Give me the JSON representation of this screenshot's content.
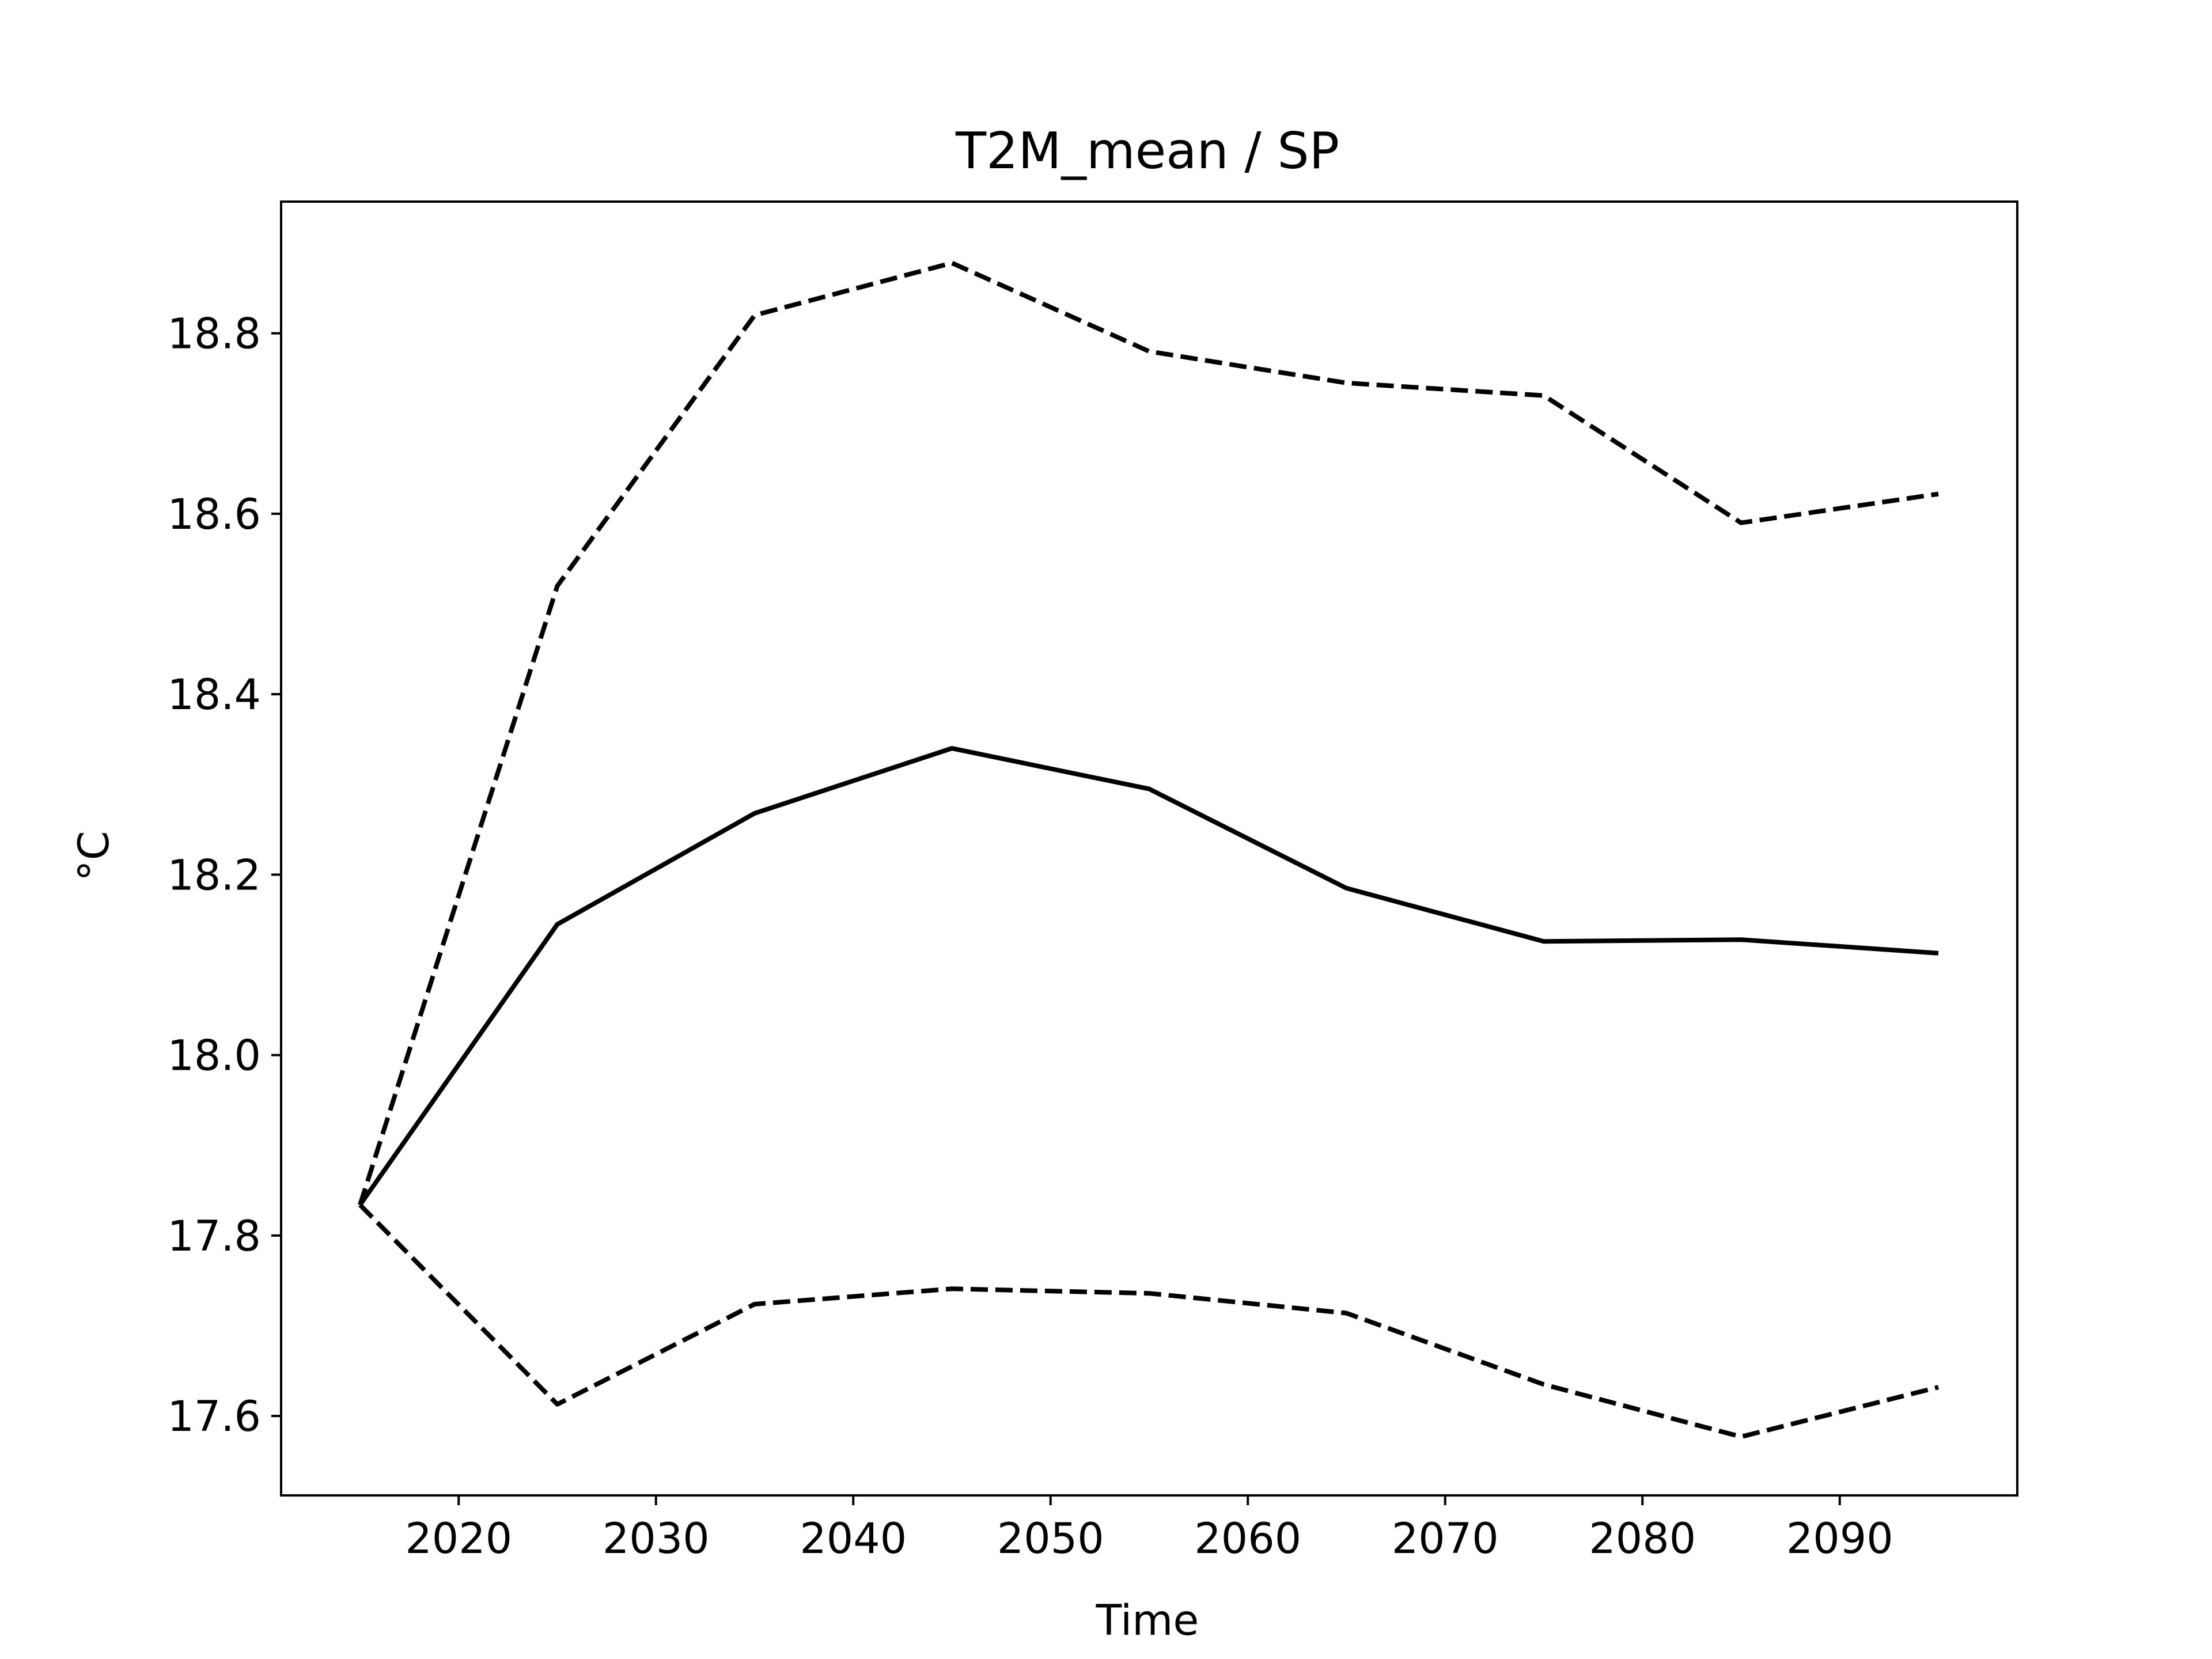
{
  "chart_data": {
    "type": "line",
    "title": "T2M_mean / SP",
    "xlabel": "Time",
    "ylabel": "°C",
    "x": [
      2015,
      2025,
      2035,
      2045,
      2055,
      2065,
      2075,
      2085,
      2095
    ],
    "series": [
      {
        "style": "solid",
        "color": "#000000",
        "values": [
          17.834,
          18.145,
          18.268,
          18.34,
          18.295,
          18.185,
          18.126,
          18.128,
          18.113
        ]
      },
      {
        "style": "dashed",
        "color": "#000000",
        "values": [
          17.834,
          18.52,
          18.82,
          18.878,
          18.78,
          18.745,
          18.731,
          18.59,
          18.622
        ]
      },
      {
        "style": "dashed",
        "color": "#000000",
        "values": [
          17.834,
          17.613,
          17.724,
          17.741,
          17.736,
          17.714,
          17.635,
          17.577,
          17.632
        ]
      }
    ],
    "xlim": [
      2011,
      2099
    ],
    "ylim": [
      17.512,
      18.946
    ],
    "xticks": [
      2020,
      2030,
      2040,
      2050,
      2060,
      2070,
      2080,
      2090
    ],
    "yticks": [
      17.6,
      17.8,
      18.0,
      18.2,
      18.4,
      18.6,
      18.8
    ],
    "xtick_labels": [
      "2020",
      "2030",
      "2040",
      "2050",
      "2060",
      "2070",
      "2080",
      "2090"
    ],
    "ytick_labels": [
      "17.6",
      "17.8",
      "18.0",
      "18.2",
      "18.4",
      "18.6",
      "18.8"
    ],
    "grid": false,
    "legend": "none"
  }
}
